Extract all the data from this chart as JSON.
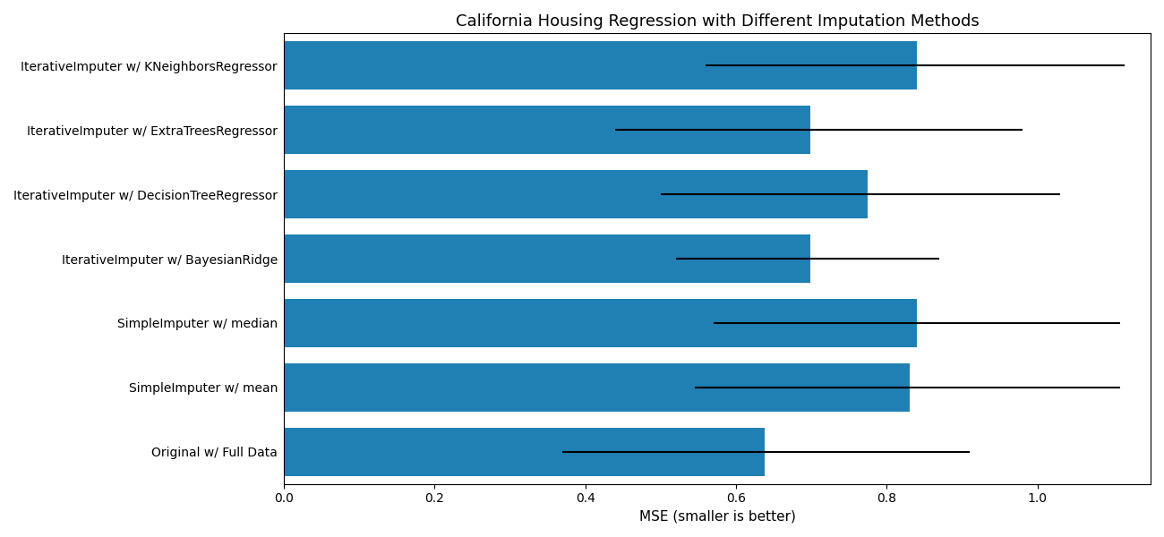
{
  "title": "California Housing Regression with Different Imputation Methods",
  "xlabel": "MSE (smaller is better)",
  "categories": [
    "IterativeImputer w/ KNeighborsRegressor",
    "IterativeImputer w/ ExtraTreesRegressor",
    "IterativeImputer w/ DecisionTreeRegressor",
    "IterativeImputer w/ BayesianRidge",
    "SimpleImputer w/ median",
    "SimpleImputer w/ mean",
    "Original w/ Full Data"
  ],
  "bar_values": [
    0.84,
    0.698,
    0.775,
    0.698,
    0.84,
    0.83,
    0.638
  ],
  "xerr_left": [
    0.28,
    0.258,
    0.275,
    0.178,
    0.27,
    0.285,
    0.268
  ],
  "xerr_right": [
    0.275,
    0.282,
    0.255,
    0.172,
    0.27,
    0.28,
    0.272
  ],
  "bar_color": "#2080b4",
  "xlim": [
    0.0,
    1.15
  ],
  "xticks": [
    0.0,
    0.2,
    0.4,
    0.6,
    0.8,
    1.0
  ],
  "bar_height": 0.75,
  "figsize": [
    13.0,
    6.0
  ],
  "dpi": 100,
  "title_fontsize": 13,
  "label_fontsize": 10,
  "xlabel_fontsize": 11
}
